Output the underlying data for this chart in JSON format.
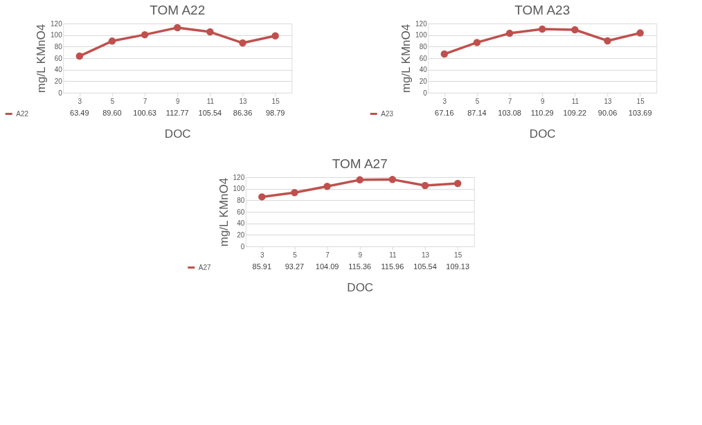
{
  "chart_data": [
    {
      "type": "line",
      "title": "TOM A22",
      "xlabel": "DOC",
      "ylabel": "mg/L KMnO4",
      "categories": [
        "3",
        "5",
        "7",
        "9",
        "11",
        "13",
        "15"
      ],
      "series": [
        {
          "name": "A22",
          "color": "#c0504d",
          "values": [
            63.49,
            89.6,
            100.63,
            112.77,
            105.54,
            86.36,
            98.79
          ],
          "value_labels": [
            "63.49",
            "89.60",
            "100.63",
            "112.77",
            "105.54",
            "86.36",
            "98.79"
          ]
        }
      ],
      "ylim": [
        0,
        120
      ],
      "yticks": [
        0,
        20,
        40,
        60,
        80,
        100,
        120
      ],
      "grid": "y",
      "marker": "circle",
      "legend": "bottom left"
    },
    {
      "type": "line",
      "title": "TOM A23",
      "xlabel": "DOC",
      "ylabel": "mg/L KMnO4",
      "categories": [
        "3",
        "5",
        "7",
        "9",
        "11",
        "13",
        "15"
      ],
      "series": [
        {
          "name": "A23",
          "color": "#c0504d",
          "values": [
            67.16,
            87.14,
            103.08,
            110.29,
            109.22,
            90.06,
            103.69
          ],
          "value_labels": [
            "67.16",
            "87.14",
            "103.08",
            "110.29",
            "109.22",
            "90.06",
            "103.69"
          ]
        }
      ],
      "ylim": [
        0,
        120
      ],
      "yticks": [
        0,
        20,
        40,
        60,
        80,
        100,
        120
      ],
      "grid": "y",
      "marker": "circle",
      "legend": "bottom left"
    },
    {
      "type": "line",
      "title": "TOM A27",
      "xlabel": "DOC",
      "ylabel": "mg/L KMnO4",
      "categories": [
        "3",
        "5",
        "7",
        "9",
        "11",
        "13",
        "15"
      ],
      "series": [
        {
          "name": "A27",
          "color": "#c0504d",
          "values": [
            85.91,
            93.27,
            104.09,
            115.36,
            115.96,
            105.54,
            109.13
          ],
          "value_labels": [
            "85.91",
            "93.27",
            "104.09",
            "115.36",
            "115.96",
            "105.54",
            "109.13"
          ]
        }
      ],
      "ylim": [
        0,
        120
      ],
      "yticks": [
        0,
        20,
        40,
        60,
        80,
        100,
        120
      ],
      "grid": "y",
      "marker": "circle",
      "legend": "bottom left"
    }
  ]
}
